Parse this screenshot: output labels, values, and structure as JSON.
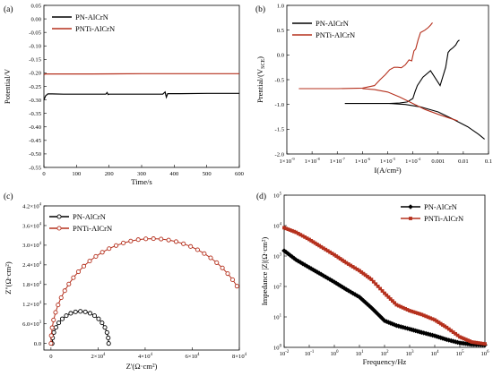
{
  "colors": {
    "black": "#000000",
    "red": "#b5301d",
    "frame": "#000000"
  },
  "chart_data": [
    {
      "panel": "(a)",
      "type": "line",
      "xlabel": "Time/s",
      "ylabel": "Potential/V",
      "xlim": [
        0,
        600
      ],
      "ylim": [
        -0.55,
        0.05
      ],
      "xticks": [
        "0",
        "100",
        "200",
        "300",
        "400",
        "500",
        "600"
      ],
      "yticks": [
        "0.05",
        "0.00",
        "-0.05",
        "-0.10",
        "-0.15",
        "-0.20",
        "-0.25",
        "-0.30",
        "-0.35",
        "-0.40",
        "-0.45",
        "-0.50",
        "-0.55"
      ],
      "legend": "top-left",
      "series": [
        {
          "name": "PN-AlCrN",
          "color": "black",
          "x": [
            0,
            5,
            12,
            25,
            60,
            120,
            180,
            190,
            194,
            197,
            200,
            260,
            320,
            365,
            372,
            376,
            380,
            386,
            420,
            500,
            600
          ],
          "y": [
            -0.3,
            -0.285,
            -0.278,
            -0.278,
            -0.279,
            -0.279,
            -0.279,
            -0.279,
            -0.273,
            -0.28,
            -0.279,
            -0.279,
            -0.279,
            -0.279,
            -0.271,
            -0.29,
            -0.277,
            -0.277,
            -0.277,
            -0.276,
            -0.276
          ]
        },
        {
          "name": "PNTi-AlCrN",
          "color": "red",
          "x": [
            0,
            5,
            50,
            150,
            300,
            450,
            600
          ],
          "y": [
            -0.207,
            -0.204,
            -0.204,
            -0.204,
            -0.203,
            -0.203,
            -0.203
          ]
        }
      ]
    },
    {
      "panel": "(b)",
      "type": "line",
      "xlabel": "I(A/cm²)",
      "ylabel": "Prential/(V",
      "ylabel_sub": "SCE",
      "ylabel_tail": ")",
      "xscale": "log",
      "xlim": [
        1e-09,
        0.1
      ],
      "ylim": [
        -2.0,
        1.0
      ],
      "xticks": [
        {
          "mant": "1×10",
          "exp": "-9"
        },
        {
          "mant": "1×10",
          "exp": "-8"
        },
        {
          "mant": "1×10",
          "exp": "-7"
        },
        {
          "mant": "1×10",
          "exp": "-6"
        },
        {
          "mant": "1×10",
          "exp": "-5"
        },
        {
          "mant": "1×10",
          "exp": "-4"
        },
        {
          "mant": "0.001",
          "exp": ""
        },
        {
          "mant": "0.01",
          "exp": ""
        },
        {
          "mant": "0.1",
          "exp": ""
        }
      ],
      "yticks": [
        "1.0",
        "0.5",
        "0.0",
        "-0.5",
        "-1.0",
        "-1.5",
        "-2.0"
      ],
      "legend": "top-left",
      "series": [
        {
          "name": "PN-AlCrN",
          "color": "black",
          "x": [
            2e-07,
            1e-06,
            5e-06,
            1.2e-05,
            3e-05,
            6e-05,
            0.0001,
            0.00012,
            0.00015,
            0.00025,
            0.0005,
            0.0012,
            0.002,
            0.0025,
            0.003,
            0.004,
            0.005,
            0.006,
            0.007
          ],
          "y": [
            -0.98,
            -0.98,
            -0.98,
            -0.98,
            -0.97,
            -0.95,
            -0.88,
            -0.75,
            -0.62,
            -0.45,
            -0.32,
            -0.62,
            -0.25,
            0.05,
            0.1,
            0.15,
            0.2,
            0.27,
            0.3
          ]
        },
        {
          "name": "PN-AlCrN (cathodic)",
          "color": "black",
          "x": [
            1.2e-05,
            5e-05,
            0.0002,
            0.001,
            0.004,
            0.015,
            0.04,
            0.07
          ],
          "y": [
            -0.98,
            -1.0,
            -1.05,
            -1.15,
            -1.3,
            -1.45,
            -1.6,
            -1.7
          ]
        },
        {
          "name": "PNTi-AlCrN",
          "color": "red",
          "x": [
            3e-09,
            1e-08,
            1e-07,
            1e-06,
            3e-06,
            5e-06,
            8e-06,
            1.2e-05,
            1.8e-05,
            2.5e-05,
            3.5e-05,
            5e-05,
            7e-05,
            9e-05,
            0.00011,
            0.00013,
            0.00016,
            0.0002,
            0.0003,
            0.0004,
            0.0005,
            0.0006
          ],
          "y": [
            -0.68,
            -0.68,
            -0.68,
            -0.67,
            -0.62,
            -0.5,
            -0.4,
            -0.3,
            -0.25,
            -0.25,
            -0.26,
            -0.2,
            -0.1,
            -0.12,
            0.08,
            0.12,
            0.3,
            0.45,
            0.5,
            0.55,
            0.6,
            0.65
          ]
        },
        {
          "name": "PNTi-AlCrN (cathodic)",
          "color": "red",
          "x": [
            1e-06,
            3e-06,
            1e-05,
            3e-05,
            0.0001,
            0.0003,
            0.001,
            0.003,
            0.006
          ],
          "y": [
            -0.68,
            -0.7,
            -0.75,
            -0.85,
            -0.98,
            -1.1,
            -1.2,
            -1.28,
            -1.33
          ]
        }
      ]
    },
    {
      "panel": "(c)",
      "type": "scatter",
      "xlabel": "Z'(Ω·cm²)",
      "ylabel": "Z''(Ω·cm²)",
      "xlim": [
        -0.3,
        8.0
      ],
      "ylim": [
        -0.2,
        4.2
      ],
      "xticks": [
        {
          "mant": "0",
          "exp": ""
        },
        {
          "mant": "2×10",
          "exp": "4"
        },
        {
          "mant": "4×10",
          "exp": "4"
        },
        {
          "mant": "6×10",
          "exp": "4"
        },
        {
          "mant": "8×10",
          "exp": "4"
        }
      ],
      "yticks": [
        {
          "mant": "0.0",
          "exp": ""
        },
        {
          "mant": "6.0×10",
          "exp": "3"
        },
        {
          "mant": "1.2×10",
          "exp": "4"
        },
        {
          "mant": "1.8×10",
          "exp": "4"
        },
        {
          "mant": "2.4×10",
          "exp": "4"
        },
        {
          "mant": "3.0×10",
          "exp": "4"
        },
        {
          "mant": "3.6×10",
          "exp": "4"
        },
        {
          "mant": "4.2×10",
          "exp": "4"
        }
      ],
      "legend": "top-left",
      "series": [
        {
          "name": "PN-AlCrN",
          "color": "black",
          "marker": "circle-open",
          "arc": {
            "z_min": 0.05,
            "z_max": 2.45,
            "peak": 0.98,
            "points": 18
          }
        },
        {
          "name": "PNTi-AlCrN",
          "color": "red",
          "marker": "circle-open",
          "arc": {
            "z_min": 0.0,
            "z_max": 8.6,
            "peak": 3.2,
            "end": 7.9,
            "points": 34
          }
        }
      ]
    },
    {
      "panel": "(d)",
      "type": "line",
      "xlabel": "Frequency/Hz",
      "ylabel": "Impedance |Z|(Ω·cm²)",
      "xscale": "log",
      "yscale": "log",
      "xlim": [
        0.01,
        1000000
      ],
      "ylim": [
        1,
        100000
      ],
      "xticks": [
        {
          "mant": "10",
          "exp": "-2"
        },
        {
          "mant": "10",
          "exp": "-1"
        },
        {
          "mant": "10",
          "exp": "0"
        },
        {
          "mant": "10",
          "exp": "1"
        },
        {
          "mant": "10",
          "exp": "2"
        },
        {
          "mant": "10",
          "exp": "3"
        },
        {
          "mant": "10",
          "exp": "4"
        },
        {
          "mant": "10",
          "exp": "5"
        },
        {
          "mant": "10",
          "exp": "6"
        }
      ],
      "yticks": [
        {
          "mant": "10",
          "exp": "5"
        },
        {
          "mant": "10",
          "exp": "4"
        },
        {
          "mant": "10",
          "exp": "3"
        },
        {
          "mant": "10",
          "exp": "2"
        },
        {
          "mant": "10",
          "exp": "1"
        },
        {
          "mant": "10",
          "exp": "0"
        }
      ],
      "legend": "top-right",
      "series": [
        {
          "name": "PN-AlCrN",
          "color": "black",
          "marker": "diamond",
          "x": [
            0.01,
            0.03,
            0.1,
            0.3,
            1,
            3,
            10,
            30,
            100,
            300,
            1000,
            3000,
            10000,
            30000,
            100000,
            300000,
            1000000
          ],
          "y": [
            1500,
            750,
            420,
            250,
            140,
            80,
            45,
            20,
            7.5,
            5.2,
            4.0,
            3.1,
            2.4,
            1.8,
            1.4,
            1.25,
            1.2
          ]
        },
        {
          "name": "PNTi-AlCrN",
          "color": "red",
          "marker": "square",
          "x": [
            0.01,
            0.03,
            0.1,
            0.3,
            1,
            3,
            10,
            30,
            100,
            300,
            1000,
            3000,
            10000,
            30000,
            100000,
            300000,
            1000000
          ],
          "y": [
            8500,
            6000,
            3500,
            2000,
            1100,
            600,
            330,
            170,
            60,
            25,
            16,
            12,
            8,
            4.5,
            2.2,
            1.5,
            1.3
          ]
        }
      ]
    }
  ]
}
